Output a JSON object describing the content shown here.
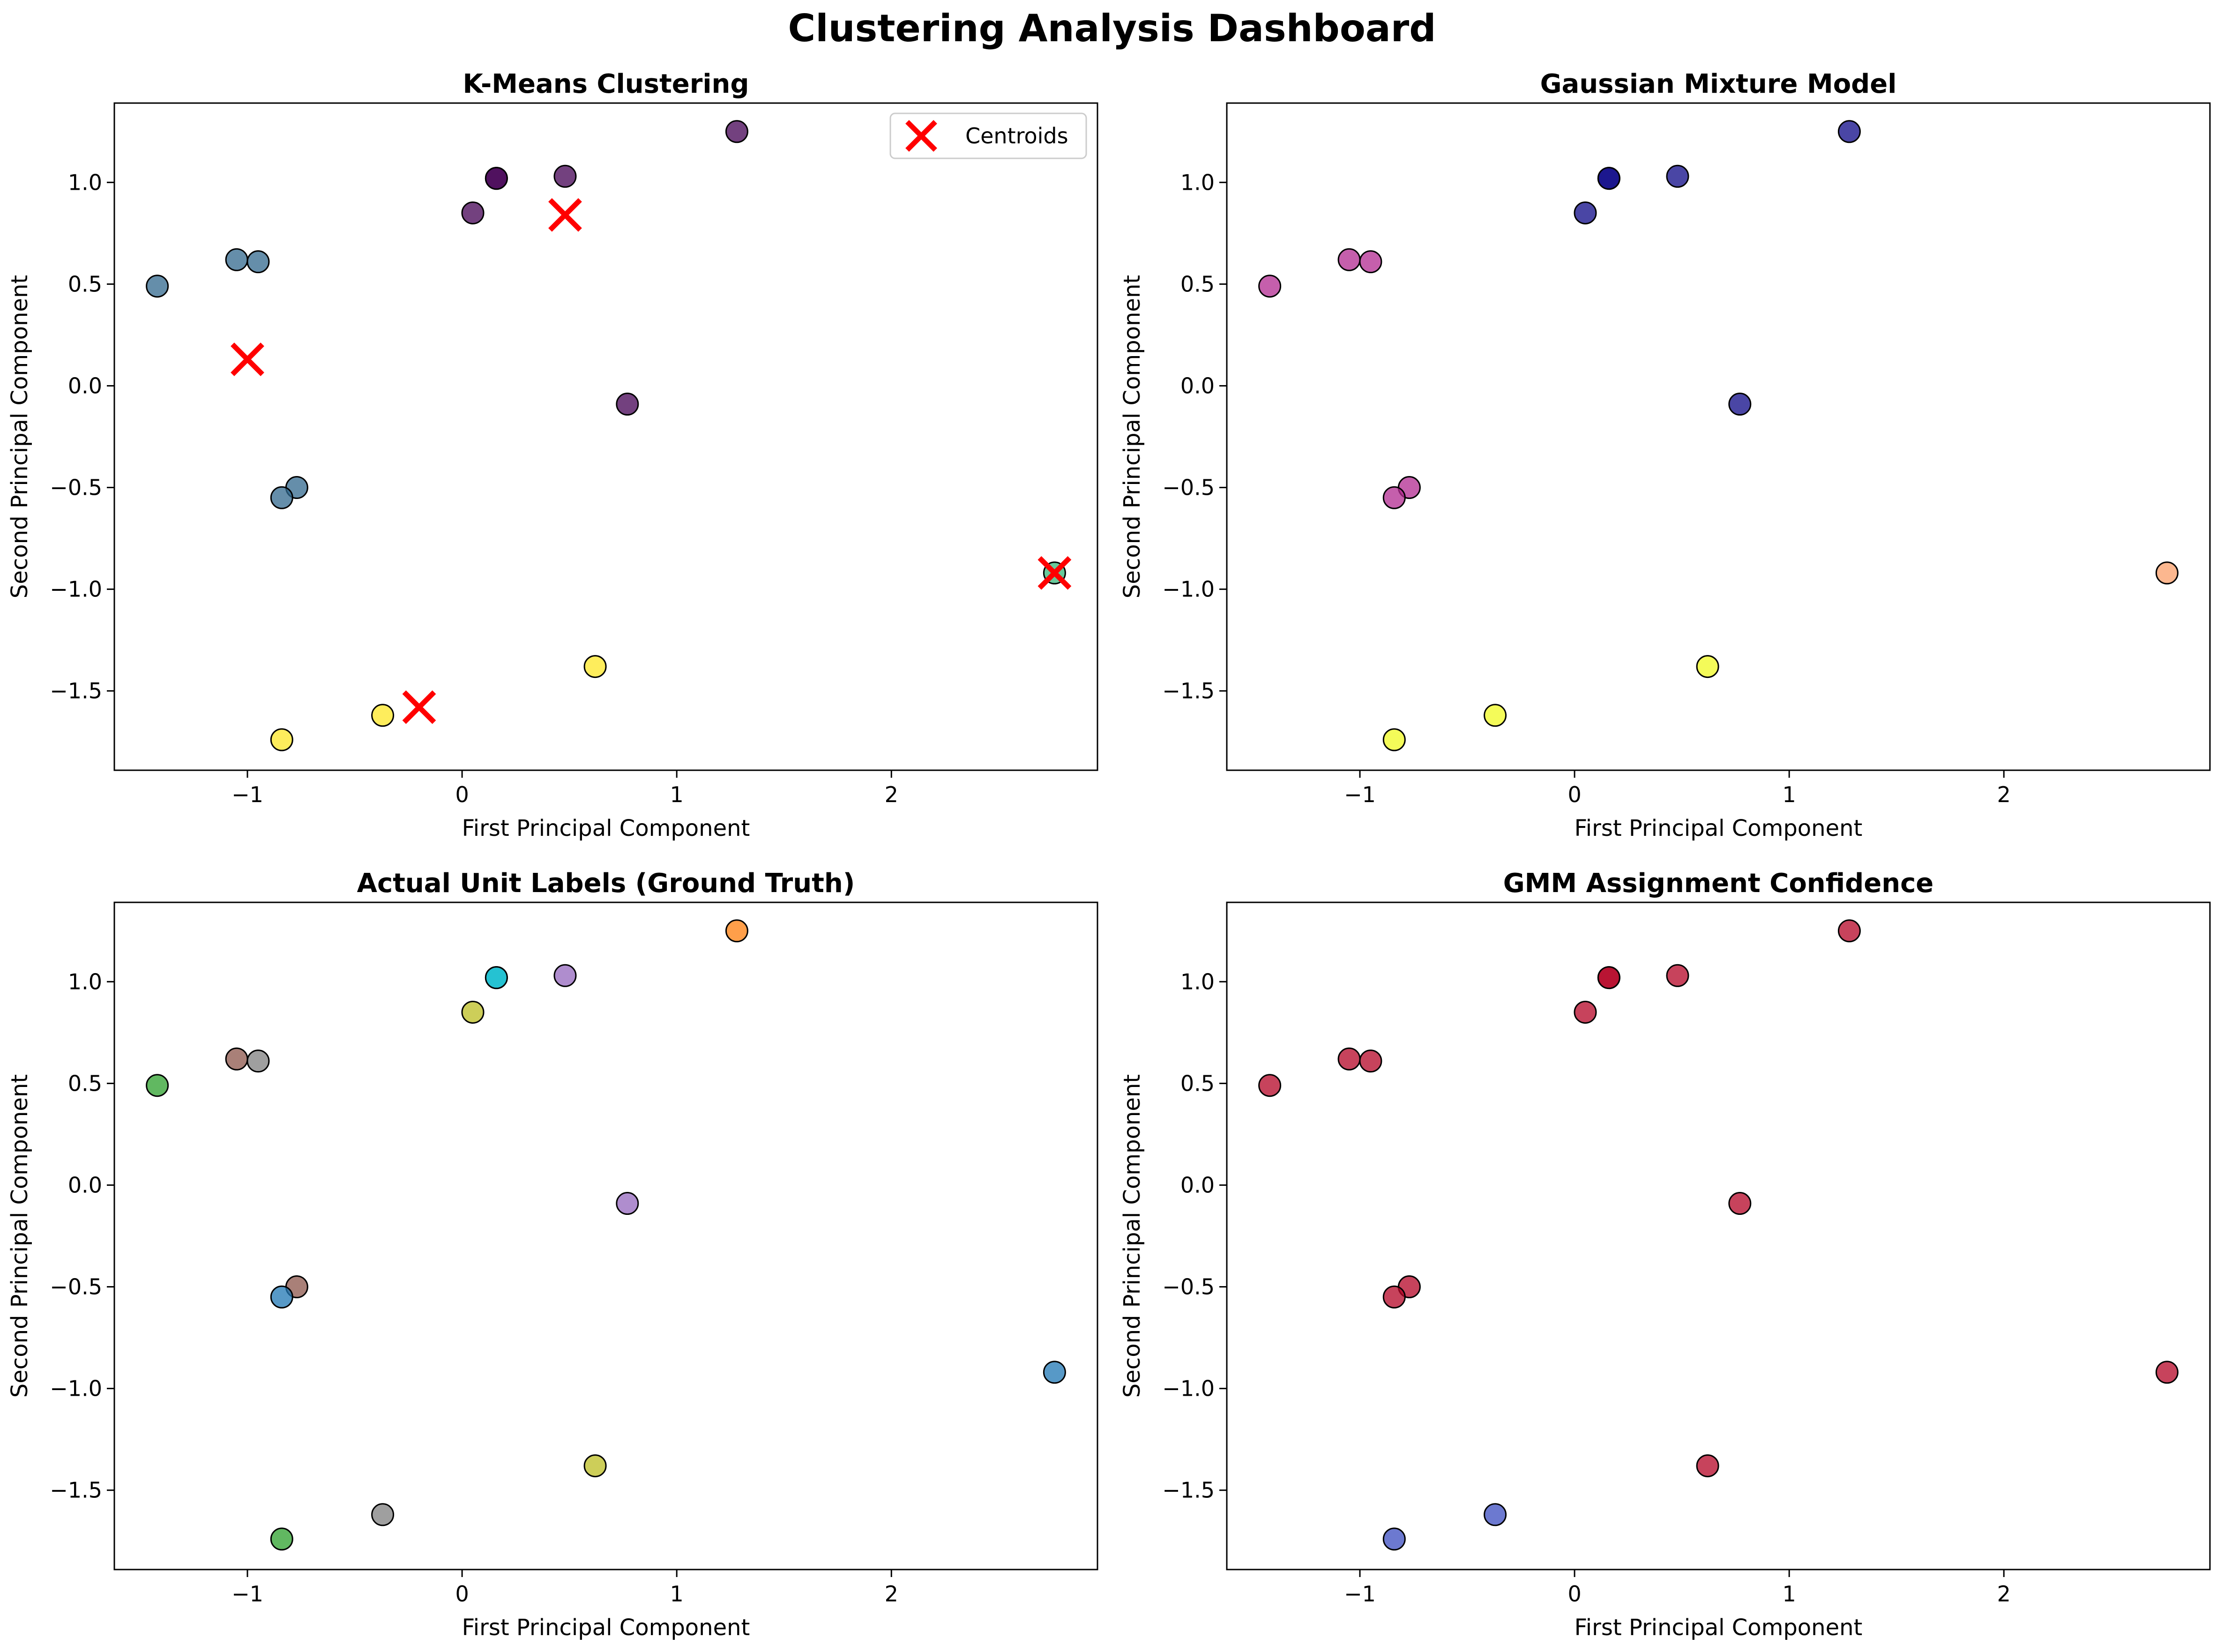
{
  "title": "Clustering Analysis Dashboard",
  "points": [
    {
      "x": 0.16,
      "y": 1.02
    },
    {
      "x": 0.16,
      "y": 1.02
    },
    {
      "x": 0.48,
      "y": 1.03
    },
    {
      "x": 1.28,
      "y": 1.25
    },
    {
      "x": 0.05,
      "y": 0.85
    },
    {
      "x": 0.77,
      "y": -0.09
    },
    {
      "x": -1.05,
      "y": 0.62
    },
    {
      "x": -0.95,
      "y": 0.61
    },
    {
      "x": -1.42,
      "y": 0.49
    },
    {
      "x": -0.77,
      "y": -0.5
    },
    {
      "x": -0.84,
      "y": -0.55
    },
    {
      "x": 2.76,
      "y": -0.92
    },
    {
      "x": 0.62,
      "y": -1.38
    },
    {
      "x": -0.37,
      "y": -1.62
    },
    {
      "x": -0.84,
      "y": -1.74
    }
  ],
  "chart_data": [
    {
      "type": "scatter",
      "title": "K-Means Clustering",
      "xlabel": "First Principal Component",
      "ylabel": "Second Principal Component",
      "xlim": [
        -1.62,
        2.96
      ],
      "ylim": [
        -1.89,
        1.39
      ],
      "xticks": [
        -1,
        0,
        1,
        2
      ],
      "yticks": [
        -1.5,
        -1.0,
        -0.5,
        0.0,
        0.5,
        1.0
      ],
      "point_colors": [
        "#440154",
        "#440154",
        "#440154",
        "#440154",
        "#440154",
        "#440154",
        "#31688e",
        "#31688e",
        "#31688e",
        "#31688e",
        "#31688e",
        "#35b779",
        "#fde725",
        "#fde725",
        "#fde725"
      ],
      "centroids": [
        {
          "x": 0.48,
          "y": 0.84
        },
        {
          "x": -1.0,
          "y": 0.13
        },
        {
          "x": 2.76,
          "y": -0.92
        },
        {
          "x": -0.2,
          "y": -1.58
        }
      ],
      "centroid_color": "#ff0000",
      "legend": {
        "label": "Centroids",
        "position": "upper right"
      }
    },
    {
      "type": "scatter",
      "title": "Gaussian Mixture Model",
      "xlabel": "First Principal Component",
      "ylabel": "Second Principal Component",
      "xlim": [
        -1.62,
        2.96
      ],
      "ylim": [
        -1.89,
        1.39
      ],
      "xticks": [
        -1,
        0,
        1,
        2
      ],
      "yticks": [
        -1.5,
        -1.0,
        -0.5,
        0.0,
        0.5,
        1.0
      ],
      "point_colors": [
        "#0d0887",
        "#0d0887",
        "#0d0887",
        "#0d0887",
        "#0d0887",
        "#0d0887",
        "#b12a90",
        "#b12a90",
        "#b12a90",
        "#b12a90",
        "#b12a90",
        "#fb9f6a",
        "#f0f921",
        "#f0f921",
        "#f0f921"
      ]
    },
    {
      "type": "scatter",
      "title": "Actual Unit Labels (Ground Truth)",
      "xlabel": "First Principal Component",
      "ylabel": "Second Principal Component",
      "xlim": [
        -1.62,
        2.96
      ],
      "ylim": [
        -1.89,
        1.39
      ],
      "xticks": [
        -1,
        0,
        1,
        2
      ],
      "yticks": [
        -1.5,
        -1.0,
        -0.5,
        0.0,
        0.5,
        1.0
      ],
      "point_colors": [
        "#17becf",
        "#17becf",
        "#9467bd",
        "#ff7f0e",
        "#bcbd22",
        "#9467bd",
        "#8c564b",
        "#7f7f7f",
        "#2ca02c",
        "#8c564b",
        "#1f77b4",
        "#1f77b4",
        "#bcbd22",
        "#7f7f7f",
        "#2ca02c"
      ]
    },
    {
      "type": "scatter",
      "title": "GMM Assignment Confidence",
      "xlabel": "First Principal Component",
      "ylabel": "Second Principal Component",
      "xlim": [
        -1.62,
        2.96
      ],
      "ylim": [
        -1.89,
        1.39
      ],
      "xticks": [
        -1,
        0,
        1,
        2
      ],
      "yticks": [
        -1.5,
        -1.0,
        -0.5,
        0.0,
        0.5,
        1.0
      ],
      "point_colors": [
        "#b40426",
        "#b40426",
        "#b40426",
        "#b40426",
        "#b40426",
        "#b40426",
        "#b40426",
        "#b40426",
        "#b40426",
        "#b40426",
        "#b40426",
        "#b40426",
        "#b40426",
        "#3b4cc0",
        "#3b4cc0"
      ]
    }
  ]
}
